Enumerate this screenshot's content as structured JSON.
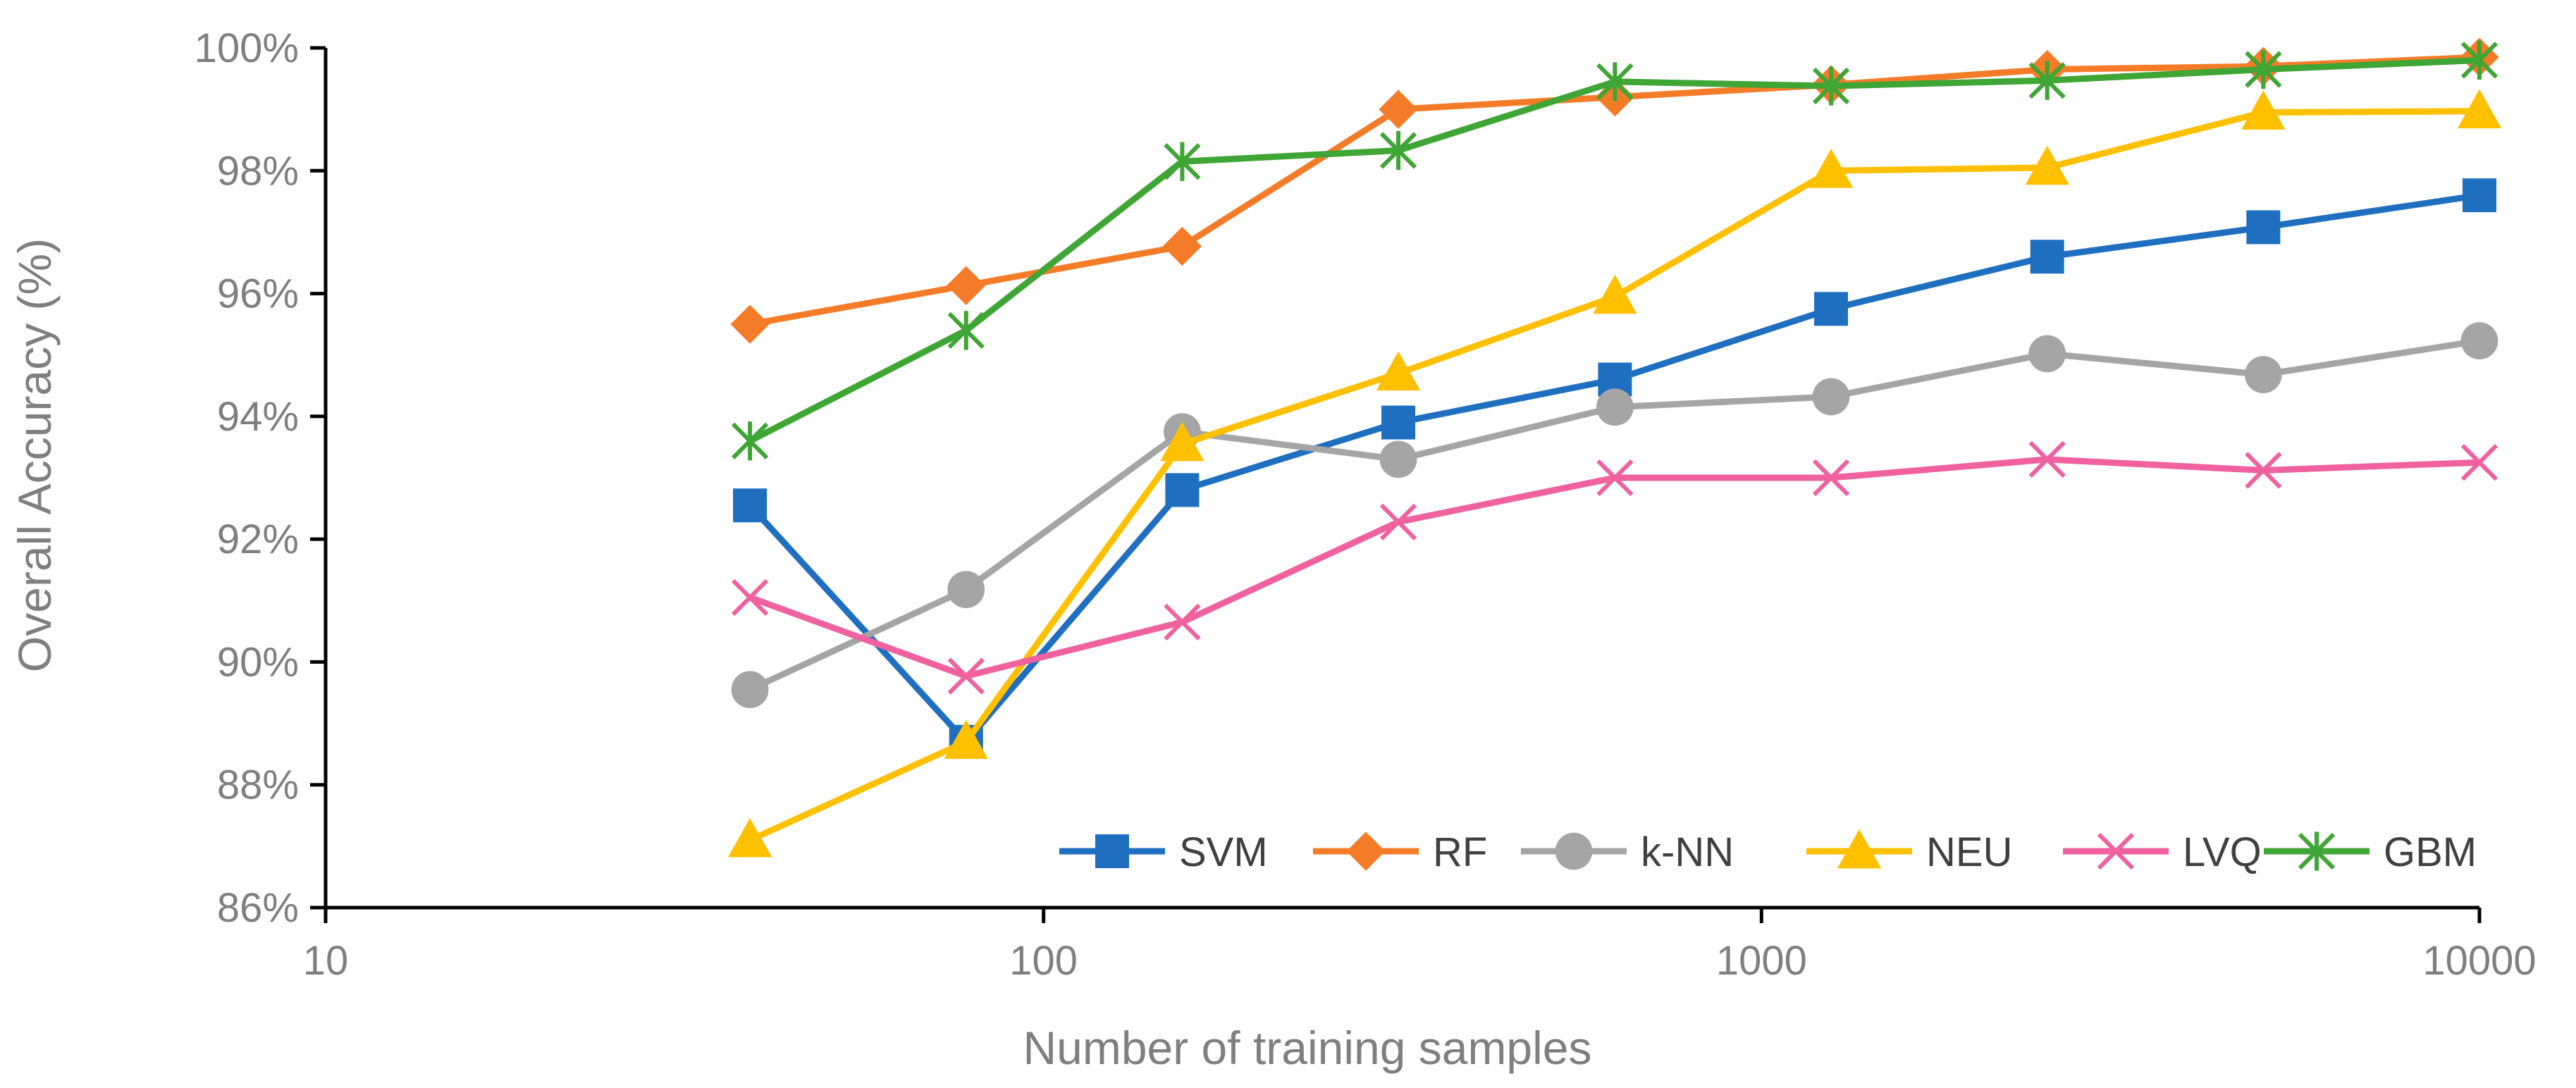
{
  "chart_data": {
    "type": "line",
    "title": "",
    "xlabel": "Number of training samples",
    "ylabel": "Overall Accuracy (%)",
    "xscale": "log",
    "xlim": [
      10,
      10000
    ],
    "ylim": [
      86,
      100
    ],
    "x_ticks": [
      10,
      100,
      1000,
      10000
    ],
    "x_tick_labels": [
      "10",
      "100",
      "1000",
      "10000"
    ],
    "y_ticks": [
      86,
      88,
      90,
      92,
      94,
      96,
      98,
      100
    ],
    "y_tick_labels": [
      "86%",
      "88%",
      "90%",
      "92%",
      "94%",
      "96%",
      "98%",
      "100%"
    ],
    "grid": false,
    "legend_position": "bottom-right inside",
    "x": [
      39,
      78,
      156,
      312,
      625,
      1250,
      2500,
      5000,
      10000
    ],
    "series": [
      {
        "name": "SVM",
        "color": "#1f6fc1",
        "marker": "square",
        "values": [
          92.55,
          88.7,
          92.8,
          93.9,
          94.6,
          95.75,
          96.6,
          97.08,
          97.6
        ]
      },
      {
        "name": "RF",
        "color": "#f47c28",
        "marker": "diamond",
        "values": [
          95.5,
          96.13,
          96.77,
          99.0,
          99.2,
          99.4,
          99.65,
          99.7,
          99.85
        ]
      },
      {
        "name": "k-NN",
        "color": "#a5a5a5",
        "marker": "circle",
        "values": [
          89.55,
          91.18,
          93.75,
          93.3,
          94.15,
          94.32,
          95.02,
          94.68,
          95.23
        ]
      },
      {
        "name": "NEU",
        "color": "#ffc000",
        "marker": "triangle",
        "values": [
          87.1,
          88.7,
          93.55,
          94.7,
          95.95,
          98.0,
          98.05,
          98.95,
          98.97
        ]
      },
      {
        "name": "LVQ",
        "color": "#f0619f",
        "marker": "x",
        "values": [
          91.05,
          89.77,
          90.65,
          92.28,
          93.0,
          93.0,
          93.3,
          93.12,
          93.25
        ]
      },
      {
        "name": "GBM",
        "color": "#3fa535",
        "marker": "star",
        "values": [
          93.6,
          95.4,
          98.15,
          98.33,
          99.45,
          99.38,
          99.47,
          99.65,
          99.8
        ]
      }
    ]
  }
}
